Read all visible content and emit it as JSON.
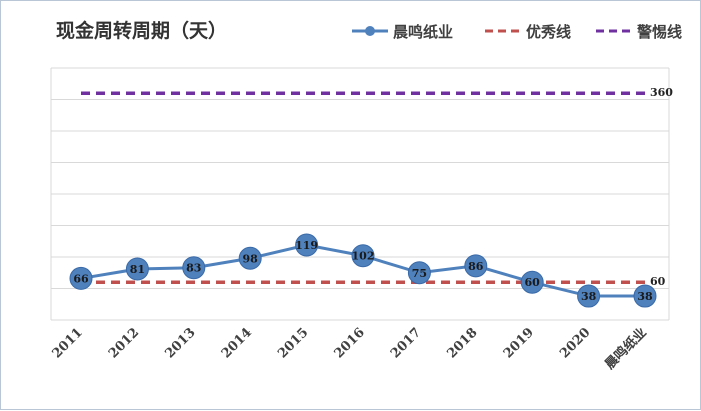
{
  "chart_data": {
    "type": "line",
    "title": "现金周转周期（天）",
    "categories": [
      "2011",
      "2012",
      "2013",
      "2014",
      "2015",
      "2016",
      "2017",
      "2018",
      "2019",
      "2020",
      "晨鸣纸业"
    ],
    "series": [
      {
        "name": "晨鸣纸业",
        "values": [
          66,
          81,
          83,
          98,
          119,
          102,
          75,
          86,
          60,
          38,
          38
        ],
        "color": "#4f81bd",
        "style": "line-marker"
      },
      {
        "name": "优秀线",
        "values": [
          60,
          60,
          60,
          60,
          60,
          60,
          60,
          60,
          60,
          60,
          60
        ],
        "color": "#c0504d",
        "style": "dashed",
        "end_label": "60"
      },
      {
        "name": "警惕线",
        "values": [
          360,
          360,
          360,
          360,
          360,
          360,
          360,
          360,
          360,
          360,
          360
        ],
        "color": "#7030a0",
        "style": "dashed",
        "end_label": "360"
      }
    ],
    "ylim": [
      0,
      400
    ],
    "grid": true,
    "legend": "top-right",
    "xlabel": "",
    "ylabel": ""
  }
}
